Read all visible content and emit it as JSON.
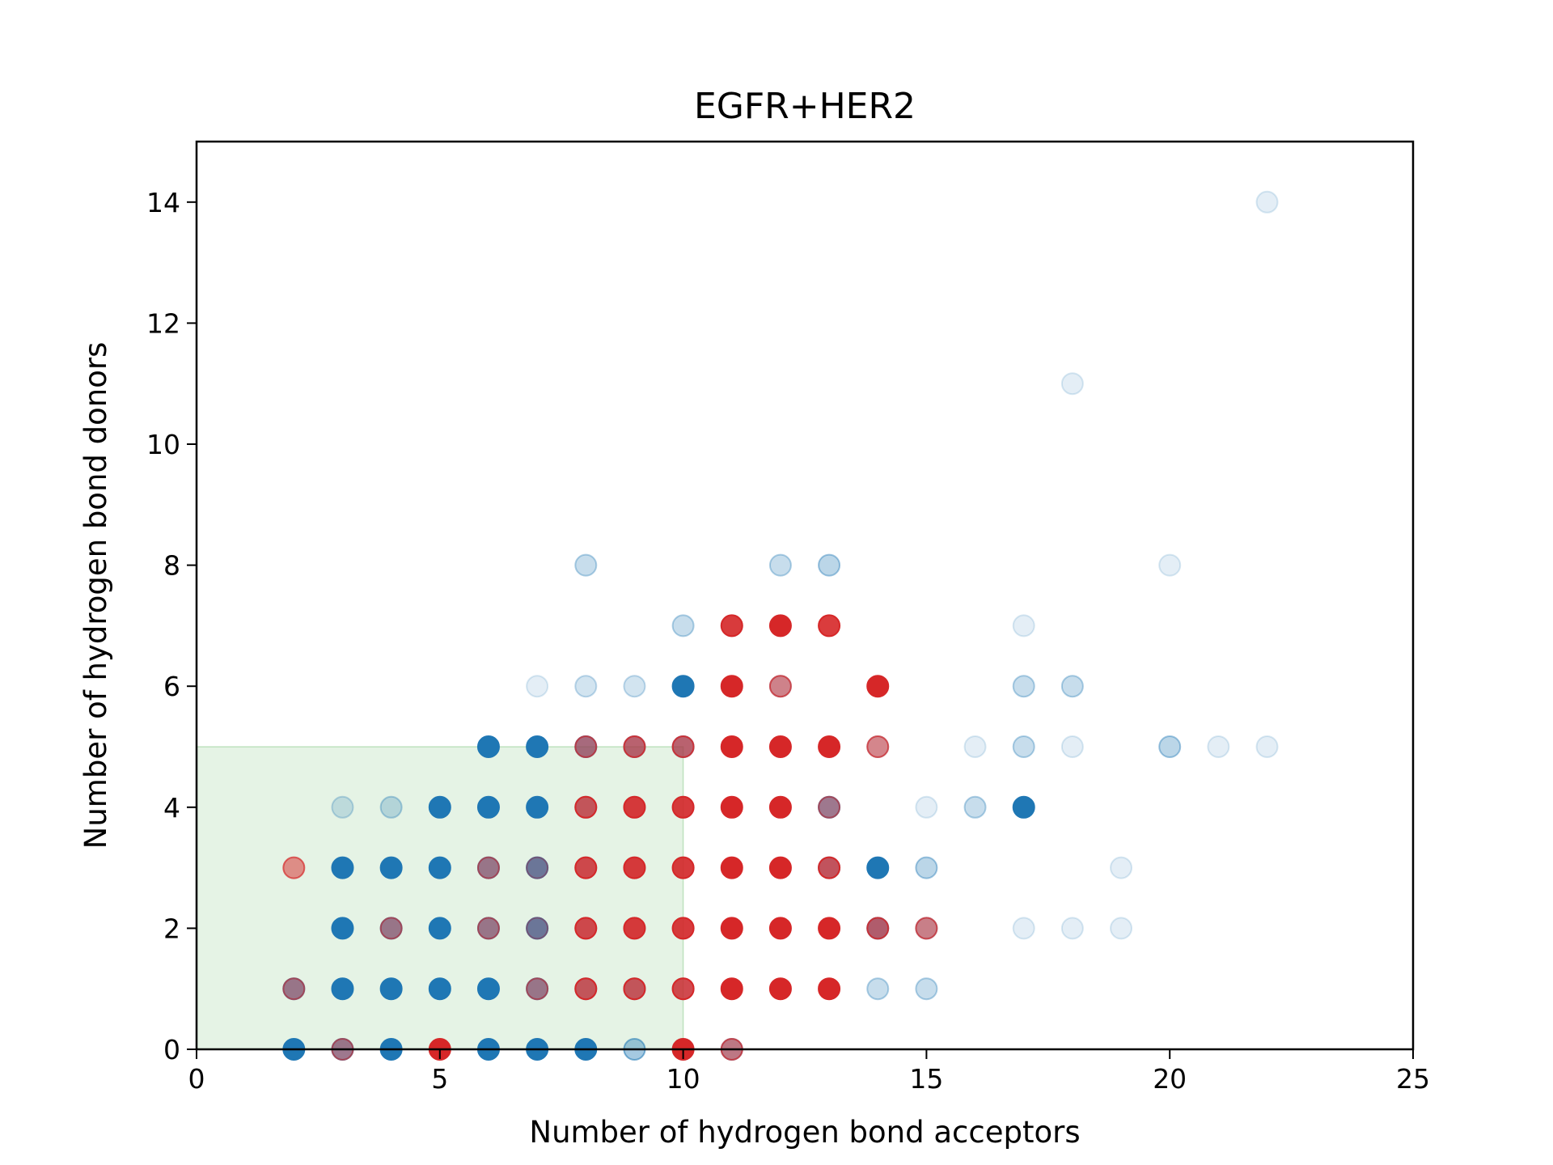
{
  "chart_data": {
    "type": "scatter",
    "title": "EGFR+HER2",
    "xlabel": "Number of hydrogen bond acceptors",
    "ylabel": "Number of hydrogen bond donors",
    "xlim": [
      0,
      25
    ],
    "ylim": [
      0,
      15
    ],
    "xticks": [
      0,
      5,
      10,
      15,
      20,
      25
    ],
    "yticks": [
      0,
      2,
      4,
      6,
      8,
      10,
      12,
      14
    ],
    "grid": false,
    "legend": "none",
    "region": {
      "x": [
        0,
        10
      ],
      "y": [
        0,
        5
      ],
      "color": "#2ca02c",
      "opacity": 0.12
    },
    "series": [
      {
        "color": "#1f77b4",
        "points": [
          {
            "x": 2,
            "y": 0,
            "a": 1
          },
          {
            "x": 2,
            "y": 1,
            "a": 0.6
          },
          {
            "x": 3,
            "y": 0,
            "a": 0.6
          },
          {
            "x": 3,
            "y": 1,
            "a": 1
          },
          {
            "x": 3,
            "y": 2,
            "a": 1
          },
          {
            "x": 3,
            "y": 3,
            "a": 1
          },
          {
            "x": 3,
            "y": 4,
            "a": 0.2
          },
          {
            "x": 4,
            "y": 0,
            "a": 1
          },
          {
            "x": 4,
            "y": 1,
            "a": 1
          },
          {
            "x": 4,
            "y": 2,
            "a": 0.6
          },
          {
            "x": 4,
            "y": 3,
            "a": 1
          },
          {
            "x": 4,
            "y": 4,
            "a": 0.25
          },
          {
            "x": 5,
            "y": 1,
            "a": 1
          },
          {
            "x": 5,
            "y": 2,
            "a": 1
          },
          {
            "x": 5,
            "y": 3,
            "a": 1
          },
          {
            "x": 5,
            "y": 4,
            "a": 1
          },
          {
            "x": 6,
            "y": 0,
            "a": 1
          },
          {
            "x": 6,
            "y": 1,
            "a": 1
          },
          {
            "x": 6,
            "y": 2,
            "a": 0.6
          },
          {
            "x": 6,
            "y": 3,
            "a": 0.6
          },
          {
            "x": 6,
            "y": 4,
            "a": 1
          },
          {
            "x": 6,
            "y": 5,
            "a": 1
          },
          {
            "x": 7,
            "y": 0,
            "a": 1
          },
          {
            "x": 7,
            "y": 1,
            "a": 0.6
          },
          {
            "x": 7,
            "y": 2,
            "a": 0.8
          },
          {
            "x": 7,
            "y": 3,
            "a": 0.8
          },
          {
            "x": 7,
            "y": 4,
            "a": 1
          },
          {
            "x": 7,
            "y": 5,
            "a": 1
          },
          {
            "x": 7,
            "y": 6,
            "a": 0.12
          },
          {
            "x": 8,
            "y": 0,
            "a": 1
          },
          {
            "x": 8,
            "y": 1,
            "a": 0.4
          },
          {
            "x": 8,
            "y": 2,
            "a": 0.3
          },
          {
            "x": 8,
            "y": 3,
            "a": 0.3
          },
          {
            "x": 8,
            "y": 4,
            "a": 0.4
          },
          {
            "x": 8,
            "y": 5,
            "a": 0.6
          },
          {
            "x": 8,
            "y": 6,
            "a": 0.2
          },
          {
            "x": 8,
            "y": 8,
            "a": 0.25
          },
          {
            "x": 9,
            "y": 0,
            "a": 0.4
          },
          {
            "x": 9,
            "y": 1,
            "a": 0.4
          },
          {
            "x": 9,
            "y": 2,
            "a": 0.2
          },
          {
            "x": 9,
            "y": 3,
            "a": 0.2
          },
          {
            "x": 9,
            "y": 4,
            "a": 0.2
          },
          {
            "x": 9,
            "y": 5,
            "a": 0.5
          },
          {
            "x": 9,
            "y": 6,
            "a": 0.2
          },
          {
            "x": 10,
            "y": 0,
            "a": 0.15
          },
          {
            "x": 10,
            "y": 1,
            "a": 0.3
          },
          {
            "x": 10,
            "y": 2,
            "a": 0.2
          },
          {
            "x": 10,
            "y": 3,
            "a": 0.2
          },
          {
            "x": 10,
            "y": 4,
            "a": 0.2
          },
          {
            "x": 10,
            "y": 5,
            "a": 0.5
          },
          {
            "x": 10,
            "y": 6,
            "a": 1
          },
          {
            "x": 10,
            "y": 7,
            "a": 0.25
          },
          {
            "x": 11,
            "y": 0,
            "a": 0.4
          },
          {
            "x": 11,
            "y": 2,
            "a": 0.12
          },
          {
            "x": 11,
            "y": 7,
            "a": 0.12
          },
          {
            "x": 12,
            "y": 6,
            "a": 0.25
          },
          {
            "x": 12,
            "y": 8,
            "a": 0.25
          },
          {
            "x": 13,
            "y": 3,
            "a": 0.5
          },
          {
            "x": 13,
            "y": 4,
            "a": 0.6
          },
          {
            "x": 13,
            "y": 8,
            "a": 0.3
          },
          {
            "x": 14,
            "y": 1,
            "a": 0.25
          },
          {
            "x": 14,
            "y": 2,
            "a": 0.6
          },
          {
            "x": 14,
            "y": 3,
            "a": 1
          },
          {
            "x": 14,
            "y": 5,
            "a": 0.2
          },
          {
            "x": 15,
            "y": 1,
            "a": 0.25
          },
          {
            "x": 15,
            "y": 2,
            "a": 0.3
          },
          {
            "x": 15,
            "y": 3,
            "a": 0.3
          },
          {
            "x": 15,
            "y": 4,
            "a": 0.12
          },
          {
            "x": 16,
            "y": 4,
            "a": 0.25
          },
          {
            "x": 16,
            "y": 5,
            "a": 0.12
          },
          {
            "x": 17,
            "y": 2,
            "a": 0.12
          },
          {
            "x": 17,
            "y": 4,
            "a": 1
          },
          {
            "x": 17,
            "y": 5,
            "a": 0.25
          },
          {
            "x": 17,
            "y": 6,
            "a": 0.25
          },
          {
            "x": 17,
            "y": 7,
            "a": 0.12
          },
          {
            "x": 18,
            "y": 2,
            "a": 0.12
          },
          {
            "x": 18,
            "y": 5,
            "a": 0.12
          },
          {
            "x": 18,
            "y": 6,
            "a": 0.25
          },
          {
            "x": 18,
            "y": 11,
            "a": 0.12
          },
          {
            "x": 19,
            "y": 2,
            "a": 0.12
          },
          {
            "x": 19,
            "y": 3,
            "a": 0.12
          },
          {
            "x": 20,
            "y": 5,
            "a": 0.3
          },
          {
            "x": 20,
            "y": 8,
            "a": 0.12
          },
          {
            "x": 21,
            "y": 5,
            "a": 0.12
          },
          {
            "x": 22,
            "y": 5,
            "a": 0.12
          },
          {
            "x": 22,
            "y": 14,
            "a": 0.12
          }
        ]
      },
      {
        "color": "#d62728",
        "points": [
          {
            "x": 2,
            "y": 1,
            "a": 0.4
          },
          {
            "x": 2,
            "y": 3,
            "a": 0.5
          },
          {
            "x": 3,
            "y": 0,
            "a": 0.4
          },
          {
            "x": 4,
            "y": 2,
            "a": 0.4
          },
          {
            "x": 5,
            "y": 0,
            "a": 1
          },
          {
            "x": 6,
            "y": 2,
            "a": 0.4
          },
          {
            "x": 6,
            "y": 3,
            "a": 0.4
          },
          {
            "x": 7,
            "y": 1,
            "a": 0.4
          },
          {
            "x": 7,
            "y": 2,
            "a": 0.25
          },
          {
            "x": 7,
            "y": 3,
            "a": 0.25
          },
          {
            "x": 8,
            "y": 1,
            "a": 0.7
          },
          {
            "x": 8,
            "y": 2,
            "a": 0.8
          },
          {
            "x": 8,
            "y": 3,
            "a": 0.8
          },
          {
            "x": 8,
            "y": 4,
            "a": 0.7
          },
          {
            "x": 8,
            "y": 5,
            "a": 0.5
          },
          {
            "x": 9,
            "y": 1,
            "a": 0.7
          },
          {
            "x": 9,
            "y": 2,
            "a": 0.9
          },
          {
            "x": 9,
            "y": 3,
            "a": 0.9
          },
          {
            "x": 9,
            "y": 4,
            "a": 0.9
          },
          {
            "x": 9,
            "y": 5,
            "a": 0.6
          },
          {
            "x": 10,
            "y": 0,
            "a": 1
          },
          {
            "x": 10,
            "y": 1,
            "a": 0.8
          },
          {
            "x": 10,
            "y": 2,
            "a": 0.9
          },
          {
            "x": 10,
            "y": 3,
            "a": 0.9
          },
          {
            "x": 10,
            "y": 4,
            "a": 0.9
          },
          {
            "x": 10,
            "y": 5,
            "a": 0.6
          },
          {
            "x": 11,
            "y": 0,
            "a": 0.5
          },
          {
            "x": 11,
            "y": 1,
            "a": 1
          },
          {
            "x": 11,
            "y": 2,
            "a": 1
          },
          {
            "x": 11,
            "y": 3,
            "a": 1
          },
          {
            "x": 11,
            "y": 4,
            "a": 1
          },
          {
            "x": 11,
            "y": 5,
            "a": 1
          },
          {
            "x": 11,
            "y": 6,
            "a": 1
          },
          {
            "x": 11,
            "y": 7,
            "a": 0.9
          },
          {
            "x": 12,
            "y": 1,
            "a": 1
          },
          {
            "x": 12,
            "y": 2,
            "a": 1
          },
          {
            "x": 12,
            "y": 3,
            "a": 1
          },
          {
            "x": 12,
            "y": 4,
            "a": 1
          },
          {
            "x": 12,
            "y": 5,
            "a": 1
          },
          {
            "x": 12,
            "y": 6,
            "a": 0.5
          },
          {
            "x": 12,
            "y": 7,
            "a": 1
          },
          {
            "x": 13,
            "y": 1,
            "a": 1
          },
          {
            "x": 13,
            "y": 2,
            "a": 1
          },
          {
            "x": 13,
            "y": 3,
            "a": 0.7
          },
          {
            "x": 13,
            "y": 4,
            "a": 0.4
          },
          {
            "x": 13,
            "y": 5,
            "a": 1
          },
          {
            "x": 13,
            "y": 7,
            "a": 0.9
          },
          {
            "x": 14,
            "y": 2,
            "a": 0.6
          },
          {
            "x": 14,
            "y": 5,
            "a": 0.5
          },
          {
            "x": 14,
            "y": 6,
            "a": 1
          },
          {
            "x": 15,
            "y": 2,
            "a": 0.5
          }
        ]
      }
    ]
  }
}
